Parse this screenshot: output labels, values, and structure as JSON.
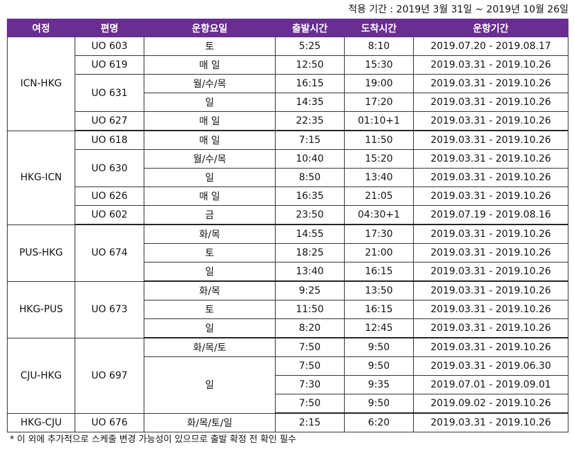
{
  "header": {
    "period": "적용 기간 : 2019년 3월 31일 ~ 2019년 10월 26일"
  },
  "table": {
    "columns": [
      "여정",
      "편명",
      "운항요일",
      "출발시간",
      "도착시간",
      "운항기간"
    ],
    "rows": [
      {
        "route": "ICN-HKG",
        "flight": "UO 603",
        "days": "토",
        "dep": "5:25",
        "arr": "8:10",
        "period": "2019.07.20 - 2019.08.17"
      },
      {
        "flight": "UO 619",
        "days": "매 일",
        "dep": "12:50",
        "arr": "15:30",
        "period": "2019.03.31 - 2019.10.26"
      },
      {
        "flight": "UO 631",
        "days": "월/수/목",
        "dep": "16:15",
        "arr": "19:00",
        "period": "2019.03.31 - 2019.10.26"
      },
      {
        "days": "일",
        "dep": "14:35",
        "arr": "17:20",
        "period": "2019.03.31 - 2019.10.26"
      },
      {
        "flight": "UO 627",
        "days": "매 일",
        "dep": "22:35",
        "arr": "01:10+1",
        "period": "2019.03.31 - 2019.10.26"
      },
      {
        "route": "HKG-ICN",
        "flight": "UO 618",
        "days": "매 일",
        "dep": "7:15",
        "arr": "11:50",
        "period": "2019.03.31 - 2019.10.26"
      },
      {
        "flight": "UO 630",
        "days": "월/수/목",
        "dep": "10:40",
        "arr": "15:20",
        "period": "2019.03.31 - 2019.10.26"
      },
      {
        "days": "일",
        "dep": "8:50",
        "arr": "13:40",
        "period": "2019.03.31 - 2019.10.26"
      },
      {
        "flight": "UO 626",
        "days": "매 일",
        "dep": "16:35",
        "arr": "21:05",
        "period": "2019.03.31 - 2019.10.26"
      },
      {
        "flight": "UO 602",
        "days": "금",
        "dep": "23:50",
        "arr": "04:30+1",
        "period": "2019.07.19 - 2019.08.16"
      },
      {
        "route": "PUS-HKG",
        "flight": "UO 674",
        "days": "화/목",
        "dep": "14:55",
        "arr": "17:30",
        "period": "2019.03.31 - 2019.10.26"
      },
      {
        "days": "토",
        "dep": "18:25",
        "arr": "21:00",
        "period": "2019.03.31 - 2019.10.26"
      },
      {
        "days": "일",
        "dep": "13:40",
        "arr": "16:15",
        "period": "2019.03.31 - 2019.10.26"
      },
      {
        "route": "HKG-PUS",
        "flight": "UO 673",
        "days": "화/목",
        "dep": "9:25",
        "arr": "13:50",
        "period": "2019.03.31 - 2019.10.26"
      },
      {
        "days": "토",
        "dep": "11:50",
        "arr": "16:15",
        "period": "2019.03.31 - 2019.10.26"
      },
      {
        "days": "일",
        "dep": "8:20",
        "arr": "12:45",
        "period": "2019.03.31 - 2019.10.26"
      },
      {
        "route": "CJU-HKG",
        "flight": "UO 697",
        "days": "화/목/토",
        "dep": "7:50",
        "arr": "9:50",
        "period": "2019.03.31 - 2019.10.26"
      },
      {
        "days": "일",
        "dep": "7:50",
        "arr": "9:50",
        "period": "2019.03.31 - 2019.06.30"
      },
      {
        "dep": "7:30",
        "arr": "9:35",
        "period": "2019.07.01 - 2019.09.01"
      },
      {
        "dep": "7:50",
        "arr": "9:50",
        "period": "2019.09.02 - 2019.10.26"
      },
      {
        "route": "HKG-CJU",
        "flight": "UO 676",
        "days": "화/목/토/일",
        "dep": "2:15",
        "arr": "6:20",
        "period": "2019.03.31 - 2019.10.26"
      }
    ]
  },
  "footnote": "* 이 외에 추가적으로 스케줄 변경 가능성이 있으므로 출발 확정 전 확인 필수"
}
